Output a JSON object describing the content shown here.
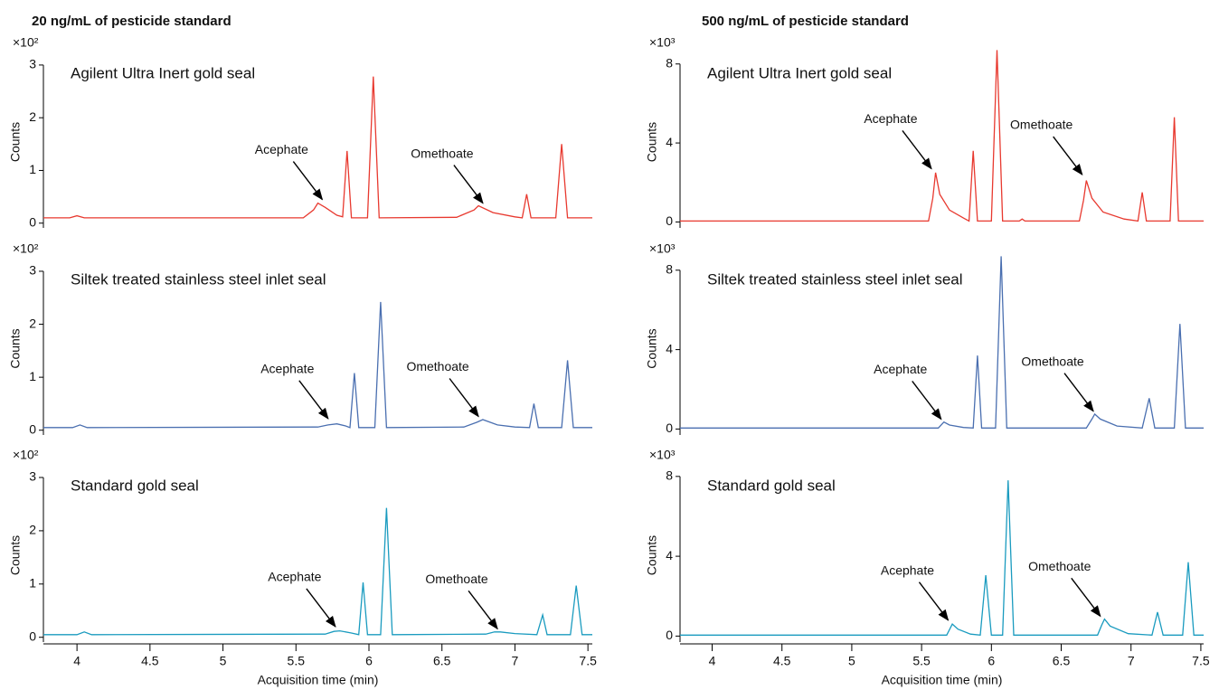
{
  "chart_data": [
    {
      "type": "line",
      "title": "20 ng/mL of pesticide standard",
      "multiplier": "×10²",
      "label": "Agilent Ultra Inert gold seal",
      "ylabel": "Counts",
      "xlim": [
        3.77,
        7.53
      ],
      "ylim": [
        -0.09,
        3.17
      ],
      "yticks": [
        0,
        1,
        2,
        3
      ],
      "series": [
        {
          "color": "#e8392f",
          "x": [
            3.77,
            3.95,
            4.0,
            4.05,
            5.55,
            5.62,
            5.65,
            5.7,
            5.78,
            5.82,
            5.85,
            5.88,
            5.99,
            6.03,
            6.07,
            6.6,
            6.72,
            6.75,
            6.85,
            7.0,
            7.05,
            7.08,
            7.11,
            7.28,
            7.32,
            7.36,
            7.53
          ],
          "values": [
            0.1,
            0.1,
            0.14,
            0.1,
            0.1,
            0.25,
            0.38,
            0.3,
            0.15,
            0.12,
            1.37,
            0.1,
            0.1,
            2.78,
            0.1,
            0.11,
            0.25,
            0.33,
            0.2,
            0.12,
            0.1,
            0.55,
            0.1,
            0.1,
            1.5,
            0.1,
            0.1
          ]
        }
      ],
      "annotations": [
        {
          "text": "Acephate",
          "x": 5.68,
          "y": 0.45
        },
        {
          "text": "Omethoate",
          "x": 6.78,
          "y": 0.38
        }
      ]
    },
    {
      "type": "line",
      "multiplier": "×10²",
      "label": "Siltek treated stainless steel inlet seal",
      "ylabel": "Counts",
      "xlim": [
        3.77,
        7.53
      ],
      "ylim": [
        -0.09,
        3.17
      ],
      "yticks": [
        0,
        1,
        2,
        3
      ],
      "series": [
        {
          "color": "#4a6fb0",
          "x": [
            3.77,
            3.97,
            4.02,
            4.07,
            5.65,
            5.72,
            5.78,
            5.84,
            5.87,
            5.9,
            5.93,
            6.04,
            6.08,
            6.12,
            6.65,
            6.74,
            6.78,
            6.88,
            7.0,
            7.1,
            7.13,
            7.16,
            7.32,
            7.36,
            7.4,
            7.53
          ],
          "values": [
            0.05,
            0.05,
            0.1,
            0.05,
            0.06,
            0.1,
            0.12,
            0.08,
            0.05,
            1.08,
            0.05,
            0.05,
            2.42,
            0.05,
            0.06,
            0.15,
            0.2,
            0.1,
            0.06,
            0.05,
            0.5,
            0.05,
            0.05,
            1.32,
            0.05,
            0.05
          ]
        }
      ],
      "annotations": [
        {
          "text": "Acephate",
          "x": 5.72,
          "y": 0.22
        },
        {
          "text": "Omethoate",
          "x": 6.75,
          "y": 0.26
        }
      ]
    },
    {
      "type": "line",
      "multiplier": "×10²",
      "label": "Standard gold seal",
      "ylabel": "Counts",
      "xlabel": "Acquisition time (min)",
      "xlim": [
        3.77,
        7.53
      ],
      "ylim": [
        -0.09,
        3.17
      ],
      "yticks": [
        0,
        1,
        2,
        3
      ],
      "xticks": [
        4,
        4.5,
        5,
        5.5,
        6,
        6.5,
        7,
        7.5
      ],
      "series": [
        {
          "color": "#1a9bbf",
          "x": [
            3.77,
            4.0,
            4.05,
            4.1,
            5.7,
            5.76,
            5.8,
            5.88,
            5.93,
            5.96,
            5.99,
            6.08,
            6.12,
            6.16,
            6.8,
            6.86,
            6.9,
            7.0,
            7.15,
            7.19,
            7.22,
            7.38,
            7.42,
            7.46,
            7.53
          ],
          "values": [
            0.05,
            0.05,
            0.1,
            0.05,
            0.06,
            0.11,
            0.12,
            0.08,
            0.05,
            1.03,
            0.05,
            0.05,
            2.43,
            0.05,
            0.06,
            0.1,
            0.1,
            0.07,
            0.05,
            0.42,
            0.05,
            0.05,
            0.97,
            0.05,
            0.05
          ]
        }
      ],
      "annotations": [
        {
          "text": "Acephate",
          "x": 5.77,
          "y": 0.2
        },
        {
          "text": "Omethoate",
          "x": 6.88,
          "y": 0.16
        }
      ]
    },
    {
      "type": "line",
      "title": "500 ng/mL of pesticide standard",
      "multiplier": "×10³",
      "label": "Agilent Ultra Inert gold seal",
      "ylabel": "Counts",
      "xlim": [
        3.77,
        7.52
      ],
      "ylim": [
        -0.3,
        8.4
      ],
      "yticks": [
        0,
        4,
        8
      ],
      "series": [
        {
          "color": "#e8392f",
          "x": [
            3.77,
            5.55,
            5.58,
            5.6,
            5.63,
            5.7,
            5.8,
            5.84,
            5.87,
            5.9,
            6.0,
            6.04,
            6.08,
            6.2,
            6.22,
            6.24,
            6.63,
            6.66,
            6.68,
            6.72,
            6.8,
            6.95,
            7.05,
            7.08,
            7.11,
            7.28,
            7.31,
            7.34,
            7.52
          ],
          "values": [
            0.05,
            0.05,
            1.2,
            2.5,
            1.4,
            0.6,
            0.2,
            0.05,
            3.6,
            0.05,
            0.05,
            8.7,
            0.05,
            0.05,
            0.15,
            0.05,
            0.05,
            1.1,
            2.1,
            1.2,
            0.5,
            0.15,
            0.05,
            1.5,
            0.05,
            0.05,
            5.3,
            0.05,
            0.05
          ]
        }
      ],
      "annotations": [
        {
          "text": "Acephate",
          "x": 5.57,
          "y": 2.7
        },
        {
          "text": "Omethoate",
          "x": 6.65,
          "y": 2.4
        }
      ]
    },
    {
      "type": "line",
      "multiplier": "×10³",
      "label": "Siltek treated stainless steel inlet seal",
      "ylabel": "Counts",
      "xlim": [
        3.77,
        7.52
      ],
      "ylim": [
        -0.3,
        8.4
      ],
      "yticks": [
        0,
        4,
        8
      ],
      "series": [
        {
          "color": "#4a6fb0",
          "x": [
            3.77,
            5.62,
            5.66,
            5.7,
            5.8,
            5.87,
            5.9,
            5.93,
            6.03,
            6.07,
            6.11,
            6.68,
            6.72,
            6.74,
            6.78,
            6.9,
            7.08,
            7.13,
            7.17,
            7.31,
            7.35,
            7.39,
            7.52
          ],
          "values": [
            0.05,
            0.05,
            0.35,
            0.2,
            0.08,
            0.05,
            3.7,
            0.05,
            0.05,
            8.7,
            0.05,
            0.05,
            0.5,
            0.75,
            0.5,
            0.15,
            0.05,
            1.55,
            0.05,
            0.05,
            5.3,
            0.05,
            0.05
          ]
        }
      ],
      "annotations": [
        {
          "text": "Acephate",
          "x": 5.64,
          "y": 0.5
        },
        {
          "text": "Omethoate",
          "x": 6.73,
          "y": 0.9
        }
      ]
    },
    {
      "type": "line",
      "multiplier": "×10³",
      "label": "Standard gold seal",
      "ylabel": "Counts",
      "xlabel": "Acquisition time (min)",
      "xlim": [
        3.77,
        7.52
      ],
      "ylim": [
        -0.3,
        8.4
      ],
      "yticks": [
        0,
        4,
        8
      ],
      "xticks": [
        4,
        4.5,
        5,
        5.5,
        6,
        6.5,
        7,
        7.5
      ],
      "series": [
        {
          "color": "#1a9bbf",
          "x": [
            3.77,
            5.68,
            5.72,
            5.76,
            5.85,
            5.92,
            5.96,
            6.0,
            6.08,
            6.12,
            6.16,
            6.76,
            6.79,
            6.81,
            6.85,
            6.98,
            7.15,
            7.19,
            7.23,
            7.37,
            7.41,
            7.45,
            7.52
          ],
          "values": [
            0.05,
            0.05,
            0.6,
            0.35,
            0.1,
            0.05,
            3.05,
            0.05,
            0.05,
            7.8,
            0.05,
            0.05,
            0.55,
            0.85,
            0.5,
            0.12,
            0.05,
            1.2,
            0.05,
            0.05,
            3.7,
            0.05,
            0.05
          ]
        }
      ],
      "annotations": [
        {
          "text": "Acephate",
          "x": 5.69,
          "y": 0.8
        },
        {
          "text": "Omethoate",
          "x": 6.78,
          "y": 1.0
        }
      ]
    }
  ]
}
